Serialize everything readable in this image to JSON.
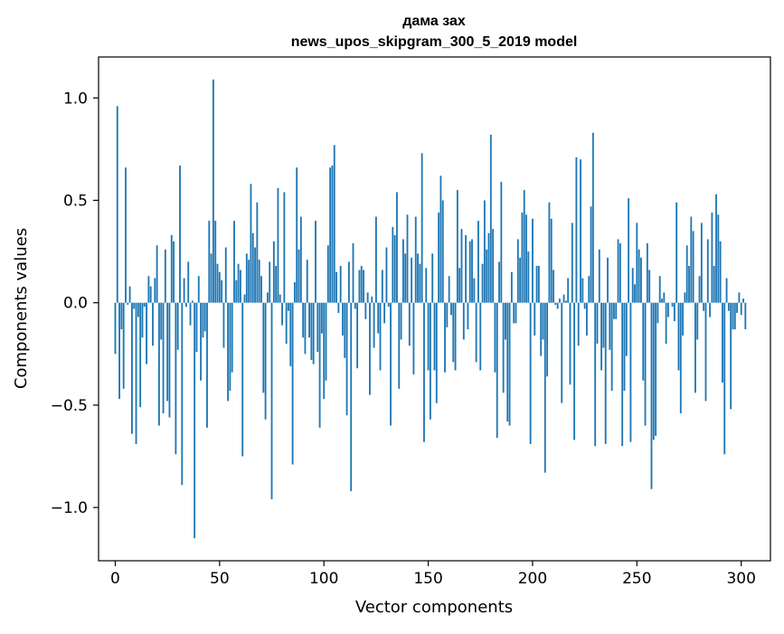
{
  "chart_data": {
    "type": "bar",
    "title_line1": "дама зах",
    "title_line2": "news_upos_skipgram_300_5_2019 model",
    "xlabel": "Vector components",
    "ylabel": "Components values",
    "xlim": [
      -8,
      314
    ],
    "ylim": [
      -1.26,
      1.2
    ],
    "xticks": [
      0,
      50,
      100,
      150,
      200,
      250,
      300
    ],
    "yticks": [
      -1.0,
      -0.5,
      0.0,
      0.5,
      1.0
    ],
    "ytick_labels": [
      "−1.0",
      "−0.5",
      "0.0",
      "0.5",
      "1.0"
    ],
    "xtick_labels": [
      "0",
      "50",
      "100",
      "150",
      "200",
      "250",
      "300"
    ],
    "grid": false,
    "bar_color": "#1f77b4",
    "values": [
      -0.25,
      0.96,
      -0.47,
      -0.13,
      -0.42,
      0.66,
      -0.01,
      0.08,
      -0.64,
      -0.03,
      -0.69,
      -0.07,
      -0.51,
      -0.17,
      -0.02,
      -0.3,
      0.13,
      0.08,
      -0.21,
      0.12,
      0.28,
      -0.6,
      -0.18,
      -0.54,
      0.26,
      -0.48,
      -0.56,
      0.33,
      0.3,
      -0.74,
      -0.23,
      0.67,
      -0.89,
      0.12,
      -0.02,
      0.2,
      -0.11,
      0.01,
      -1.15,
      -0.24,
      0.13,
      -0.38,
      -0.17,
      -0.14,
      -0.61,
      0.4,
      0.24,
      1.09,
      0.4,
      0.19,
      0.15,
      0.11,
      -0.22,
      0.27,
      -0.48,
      -0.43,
      -0.34,
      0.4,
      0.11,
      0.19,
      0.16,
      -0.75,
      0.04,
      0.24,
      0.21,
      0.58,
      0.34,
      0.27,
      0.49,
      0.21,
      0.13,
      -0.44,
      -0.57,
      0.05,
      0.2,
      -0.96,
      0.3,
      0.18,
      0.56,
      0.04,
      -0.11,
      0.54,
      -0.2,
      -0.04,
      -0.31,
      -0.79,
      0.1,
      0.66,
      0.26,
      0.42,
      -0.17,
      -0.25,
      0.21,
      -0.17,
      -0.28,
      -0.3,
      0.4,
      -0.24,
      -0.61,
      -0.15,
      -0.47,
      -0.38,
      0.28,
      0.66,
      0.67,
      0.77,
      0.15,
      -0.05,
      0.18,
      -0.16,
      -0.27,
      -0.55,
      0.2,
      -0.92,
      0.29,
      -0.03,
      -0.32,
      0.16,
      0.18,
      0.16,
      -0.08,
      0.05,
      -0.45,
      0.03,
      -0.22,
      0.42,
      -0.15,
      -0.33,
      0.16,
      -0.1,
      0.27,
      -0.02,
      -0.6,
      0.37,
      0.33,
      0.54,
      -0.42,
      -0.18,
      0.31,
      0.24,
      0.43,
      -0.21,
      0.22,
      -0.35,
      0.42,
      0.24,
      0.19,
      0.73,
      -0.68,
      0.17,
      -0.33,
      -0.57,
      0.24,
      -0.33,
      -0.49,
      0.44,
      0.62,
      0.5,
      -0.34,
      -0.12,
      0.13,
      -0.06,
      -0.29,
      -0.33,
      0.55,
      0.17,
      0.36,
      -0.18,
      0.33,
      -0.13,
      0.3,
      0.31,
      0.12,
      -0.29,
      0.4,
      -0.33,
      0.19,
      0.5,
      0.26,
      0.34,
      0.82,
      0.36,
      -0.34,
      -0.66,
      0.2,
      0.59,
      -0.44,
      -0.18,
      -0.58,
      -0.6,
      0.15,
      -0.1,
      -0.1,
      0.31,
      0.22,
      0.44,
      0.55,
      0.43,
      0.25,
      -0.69,
      0.41,
      -0.16,
      0.18,
      0.18,
      -0.26,
      -0.18,
      -0.83,
      -0.36,
      0.49,
      0.41,
      0.16,
      -0.01,
      -0.03,
      0.02,
      -0.49,
      0.04,
      0.01,
      0.12,
      -0.4,
      0.39,
      -0.67,
      0.71,
      -0.21,
      0.7,
      0.12,
      -0.03,
      -0.16,
      0.13,
      0.47,
      0.83,
      -0.7,
      -0.2,
      0.26,
      -0.33,
      -0.22,
      -0.69,
      0.22,
      -0.23,
      -0.43,
      -0.08,
      -0.08,
      0.31,
      0.29,
      -0.7,
      -0.43,
      -0.26,
      0.51,
      -0.68,
      0.17,
      0.09,
      0.39,
      0.26,
      0.22,
      -0.38,
      -0.6,
      0.29,
      0.16,
      -0.91,
      -0.67,
      -0.65,
      -0.1,
      0.13,
      0.02,
      0.05,
      -0.2,
      -0.07,
      0.0,
      -0.02,
      -0.09,
      0.49,
      -0.33,
      -0.54,
      -0.16,
      0.05,
      0.28,
      0.18,
      0.42,
      0.35,
      -0.44,
      -0.18,
      0.13,
      0.39,
      -0.04,
      -0.48,
      0.31,
      -0.07,
      0.44,
      0.18,
      0.53,
      0.43,
      0.3,
      -0.39,
      -0.74,
      0.12,
      -0.04,
      -0.52,
      -0.13,
      -0.13,
      -0.05,
      0.05,
      -0.06,
      0.02,
      -0.13
    ]
  }
}
